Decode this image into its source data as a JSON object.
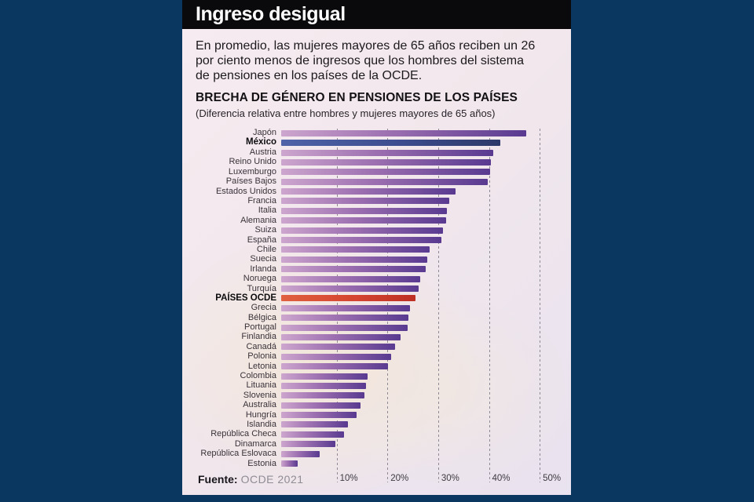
{
  "page": {
    "background_color": "#093760",
    "card_background": "#f1e7ec",
    "titlebar_background": "#0a0a0c"
  },
  "header": {
    "title": "Ingreso desigual"
  },
  "intro": {
    "text": "En promedio, las mujeres mayores de 65 años reciben un 26\npor ciento menos de ingresos que los hombres del sistema\nde pensiones en los países de la OCDE."
  },
  "chart_data": {
    "type": "bar",
    "orientation": "horizontal",
    "title": "BRECHA DE GÉNERO EN PENSIONES DE LOS PAÍSES",
    "subtitle": "(Diferencia relativa entre hombres y mujeres mayores de 65 años)",
    "unit": "%",
    "xlim": [
      0,
      54
    ],
    "grid": "dashed-vertical",
    "xticks": [
      {
        "value": 10,
        "label": "10%"
      },
      {
        "value": 20,
        "label": "20%"
      },
      {
        "value": 30,
        "label": "30%"
      },
      {
        "value": 40,
        "label": "40%"
      },
      {
        "value": 50,
        "label": "50%"
      }
    ],
    "categories": [
      "Japón",
      "México",
      "Austria",
      "Reino Unido",
      "Luxemburgo",
      "Países Bajos",
      "Estados Unidos",
      "Francia",
      "Italia",
      "Alemania",
      "Suiza",
      "España",
      "Chile",
      "Suecia",
      "Irlanda",
      "Noruega",
      "Turquía",
      "PAÍSES OCDE",
      "Grecia",
      "Bélgica",
      "Portugal",
      "Finlandia",
      "Canadá",
      "Polonia",
      "Letonia",
      "Colombia",
      "Lituania",
      "Slovenia",
      "Australia",
      "Hungría",
      "Islandia",
      "República Checa",
      "Dinamarca",
      "República Eslovaca",
      "Estonia"
    ],
    "values": [
      47.5,
      42.5,
      41.0,
      40.6,
      40.4,
      40.0,
      33.8,
      32.5,
      32.1,
      31.9,
      31.3,
      31.1,
      28.7,
      28.3,
      28.0,
      26.9,
      26.6,
      26.0,
      24.9,
      24.7,
      24.5,
      23.1,
      22.0,
      21.3,
      20.7,
      16.7,
      16.4,
      16.1,
      15.3,
      14.6,
      13.0,
      12.2,
      10.5,
      7.4,
      3.2
    ],
    "highlights": [
      {
        "index": 1,
        "category": "México",
        "style": "blue"
      },
      {
        "index": 17,
        "category": "PAÍSES OCDE",
        "style": "red"
      }
    ],
    "colors": {
      "bar_gradient": [
        "#cda6ce",
        "#593a90"
      ],
      "mexico_gradient": [
        "#5063a8",
        "#2c3968"
      ],
      "ocde_gradient": [
        "#e0603f",
        "#bd2f23"
      ],
      "gridline": "#8d8a95"
    }
  },
  "source": {
    "label": "Fuente:",
    "value": "OCDE 2021"
  }
}
